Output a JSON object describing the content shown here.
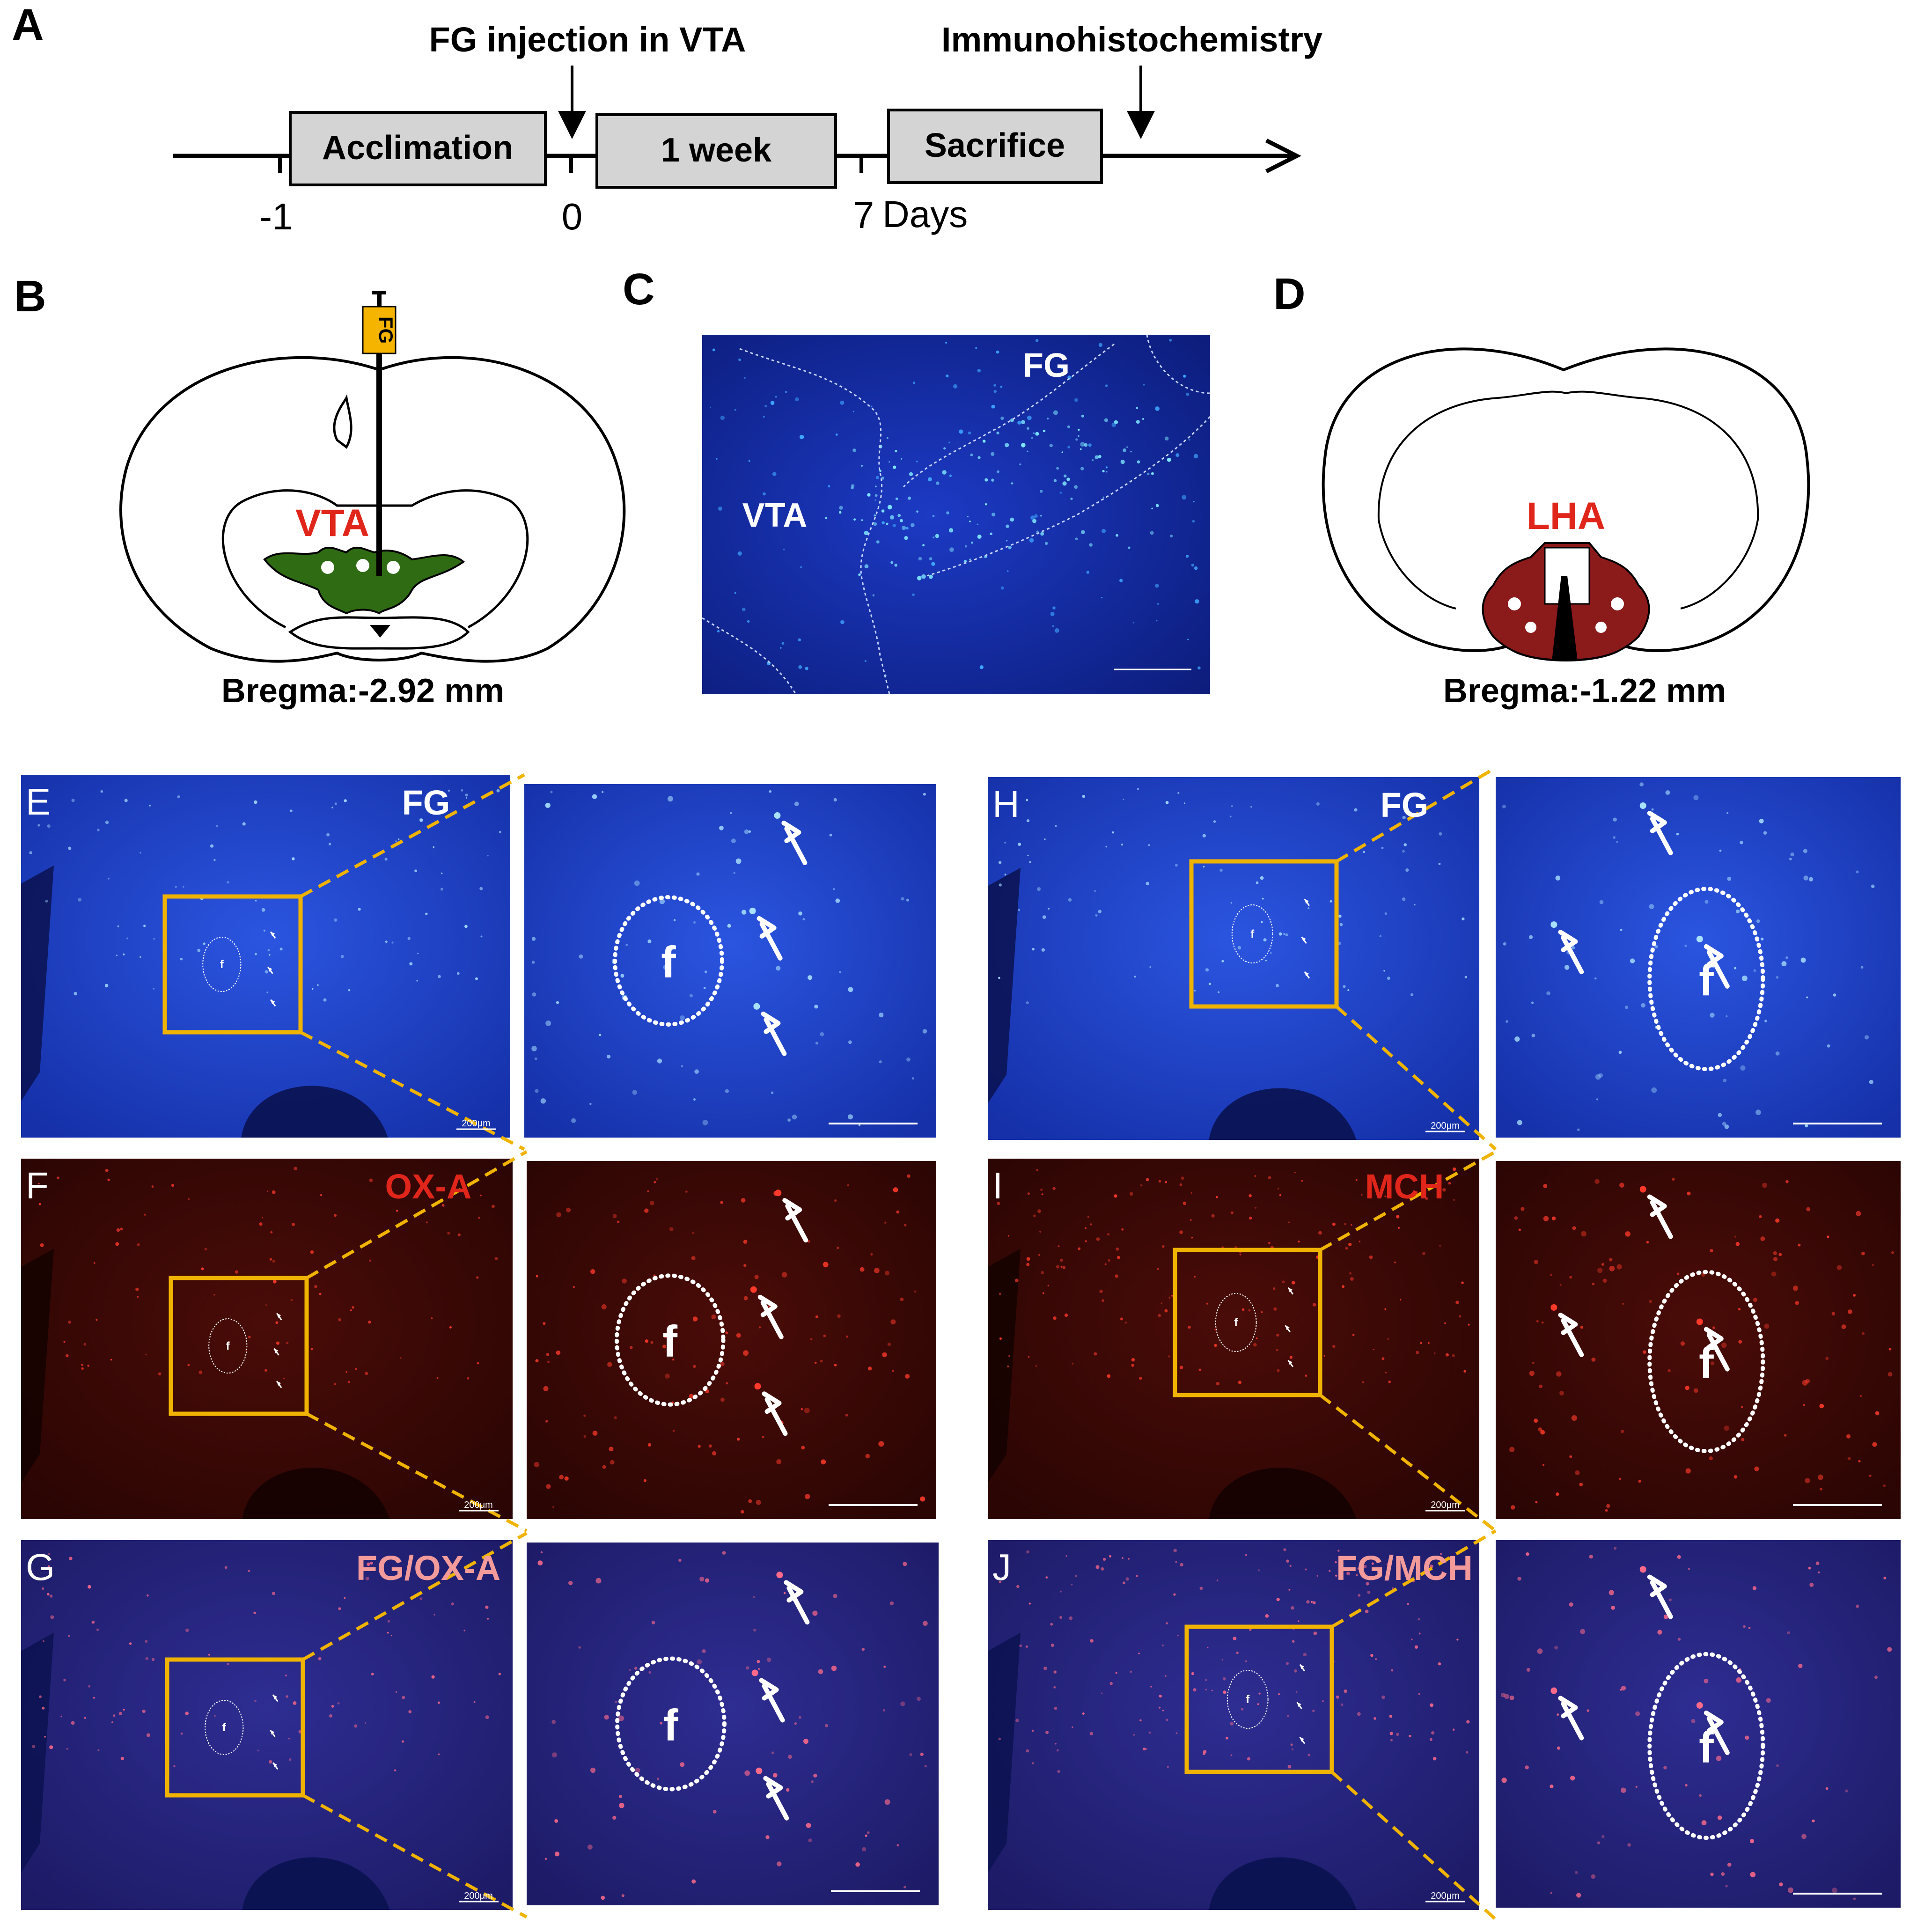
{
  "panel_letters": {
    "a": "A",
    "b": "B",
    "c": "C",
    "d": "D",
    "e": "E",
    "f": "F",
    "g": "G",
    "h": "H",
    "i": "I",
    "j": "J"
  },
  "timeline": {
    "inj_label": "FG injection in VTA",
    "ihc_label": "Immunohistochemistry",
    "box1": "Acclimation",
    "box2": "1 week",
    "box3": "Sacrifice",
    "tick_m1": "-1",
    "tick_0": "0",
    "tick_7": "7",
    "days": "Days"
  },
  "panel_b": {
    "syringe_label": "FG",
    "region": "VTA",
    "bregma": "Bregma:-2.92 mm",
    "region_color": "#2f6b12"
  },
  "panel_c": {
    "fg": "FG",
    "vta": "VTA"
  },
  "panel_d": {
    "region": "LHA",
    "bregma": "Bregma:-1.22 mm",
    "region_color": "#8b1a1a"
  },
  "rows": {
    "e": {
      "stain": "FG",
      "color": "#ffffff"
    },
    "f": {
      "stain": "OX-A",
      "color": "#e0261b"
    },
    "g": {
      "stain": "FG/OX-A",
      "color": "#f39a9a"
    },
    "h": {
      "stain": "FG",
      "color": "#ffffff"
    },
    "i": {
      "stain": "MCH",
      "color": "#e0261b"
    },
    "j": {
      "stain": "FG/MCH",
      "color": "#f39a9a"
    }
  },
  "fornix_label": "f",
  "scale_label": "200μm",
  "colors": {
    "box": "#f0b400",
    "fg_bg": "#1f3fc8",
    "ox_bg": "#3a0806",
    "merge_bg": "#24227a"
  }
}
